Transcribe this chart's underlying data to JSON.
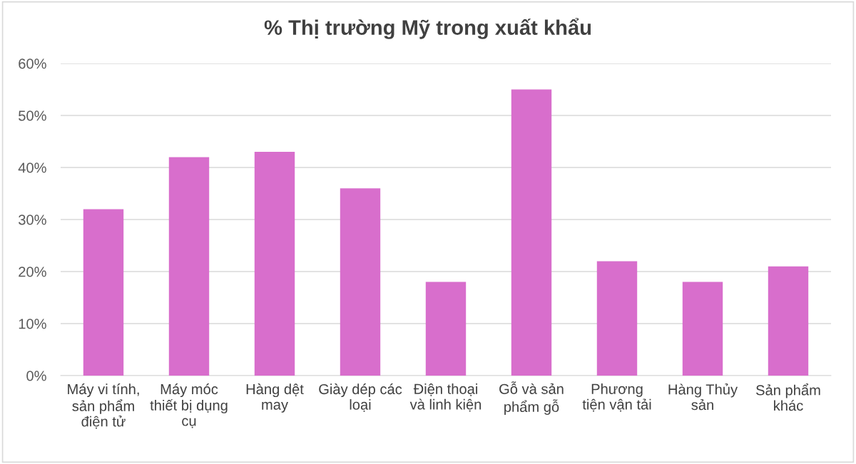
{
  "chart_data": {
    "type": "bar",
    "title": "% Thị trường Mỹ trong xuất khẩu",
    "categories": [
      "Máy vi tính,\nsản phẩm\nđiện tử",
      "Máy móc\nthiết bị dụng\ncụ",
      "Hàng dệt\nmay",
      "Giày dép các\nloại",
      "Điện thoại\nvà linh kiện",
      "Gỗ và sản\nphẩm gỗ",
      "Phương\ntiện vận tải",
      "Hàng Thủy\nsản",
      "Sản phẩm\nkhác"
    ],
    "values": [
      32,
      42,
      43,
      36,
      18,
      55,
      22,
      18,
      21
    ],
    "color": "#d86ecc",
    "ylim": [
      0,
      60
    ],
    "yticks": [
      {
        "value": 0,
        "label": "0%"
      },
      {
        "value": 10,
        "label": "10%"
      },
      {
        "value": 20,
        "label": "20%"
      },
      {
        "value": 30,
        "label": "30%"
      },
      {
        "value": 40,
        "label": "40%"
      },
      {
        "value": 50,
        "label": "50%"
      },
      {
        "value": 60,
        "label": "60%"
      }
    ],
    "grid": "y"
  }
}
